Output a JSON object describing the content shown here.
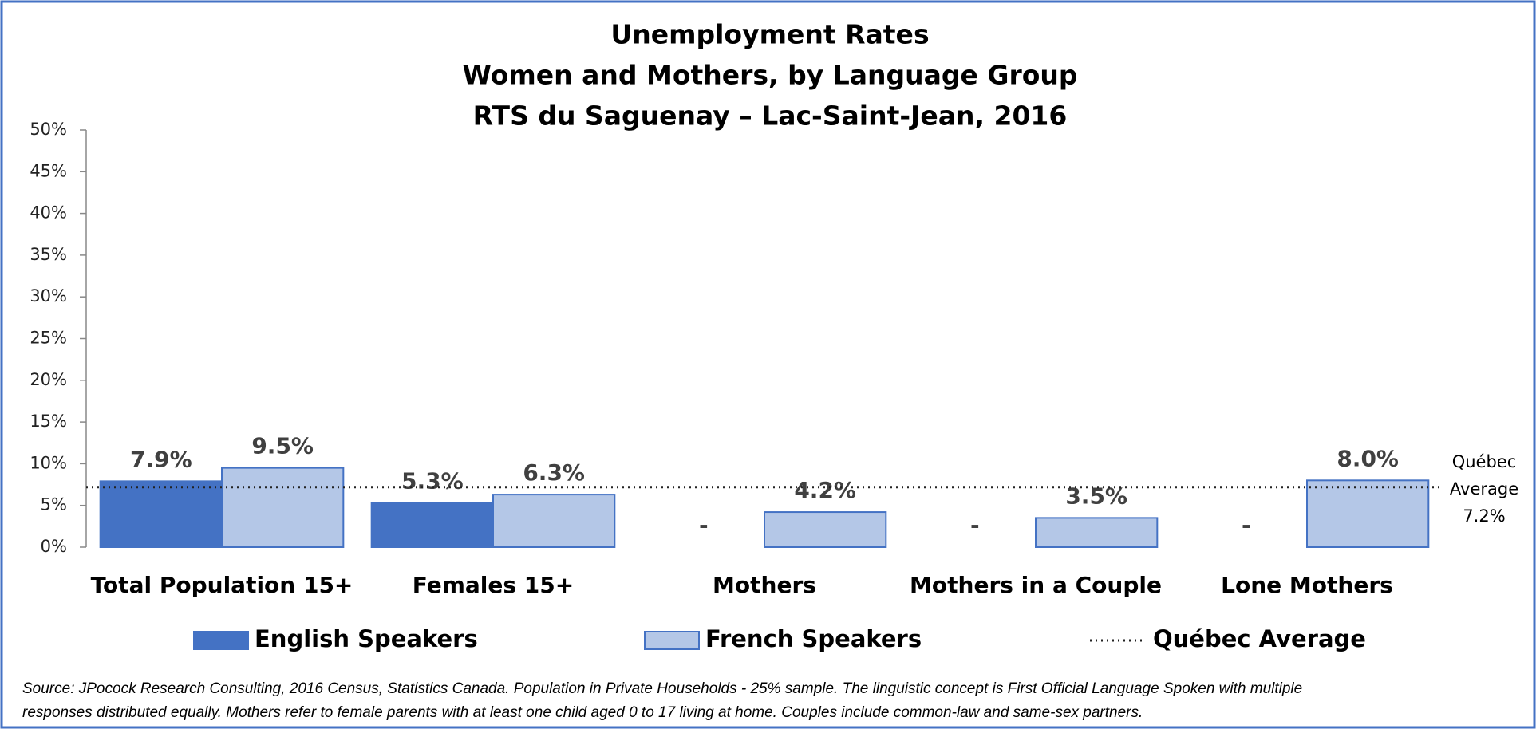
{
  "chart_data": {
    "type": "bar",
    "title": [
      "Unemployment Rates",
      "Women and Mothers, by Language Group",
      "RTS du Saguenay – Lac-Saint-Jean, 2016"
    ],
    "categories": [
      "Total Population 15+",
      "Females 15+",
      "Mothers",
      "Mothers in a Couple",
      "Lone Mothers"
    ],
    "series": [
      {
        "name": "English Speakers",
        "color": "#4472c4",
        "values": [
          7.9,
          5.3,
          null,
          null,
          null
        ],
        "value_labels": [
          "7.9%",
          "5.3%",
          "-",
          "-",
          "-"
        ]
      },
      {
        "name": "French Speakers",
        "color": "#b4c7e7",
        "values": [
          9.5,
          6.3,
          4.2,
          3.5,
          8.0
        ],
        "value_labels": [
          "9.5%",
          "6.3%",
          "4.2%",
          "3.5%",
          "8.0%"
        ]
      }
    ],
    "reference_line": {
      "name": "Québec Average",
      "annotation_lines": [
        "Québec",
        "Average"
      ],
      "value": 7.2,
      "value_label": "7.2%"
    },
    "ylim": [
      0,
      50
    ],
    "yticks": [
      {
        "value": 0,
        "label": "0%"
      },
      {
        "value": 5,
        "label": "5%"
      },
      {
        "value": 10,
        "label": "10%"
      },
      {
        "value": 15,
        "label": "15%"
      },
      {
        "value": 20,
        "label": "20%"
      },
      {
        "value": 25,
        "label": "25%"
      },
      {
        "value": 30,
        "label": "30%"
      },
      {
        "value": 35,
        "label": "35%"
      },
      {
        "value": 40,
        "label": "40%"
      },
      {
        "value": 45,
        "label": "45%"
      },
      {
        "value": 50,
        "label": "50%"
      }
    ],
    "grid": false,
    "legend": "bottom",
    "source": [
      "Source: JPocock Research Consulting, 2016 Census, Statistics Canada. Population in Private Households - 25% sample. The linguistic concept is First Official Language Spoken with multiple",
      "responses distributed equally. Mothers refer to female parents with at least one child aged 0 to 17 living at home. Couples include common-law and same-sex partners."
    ]
  }
}
